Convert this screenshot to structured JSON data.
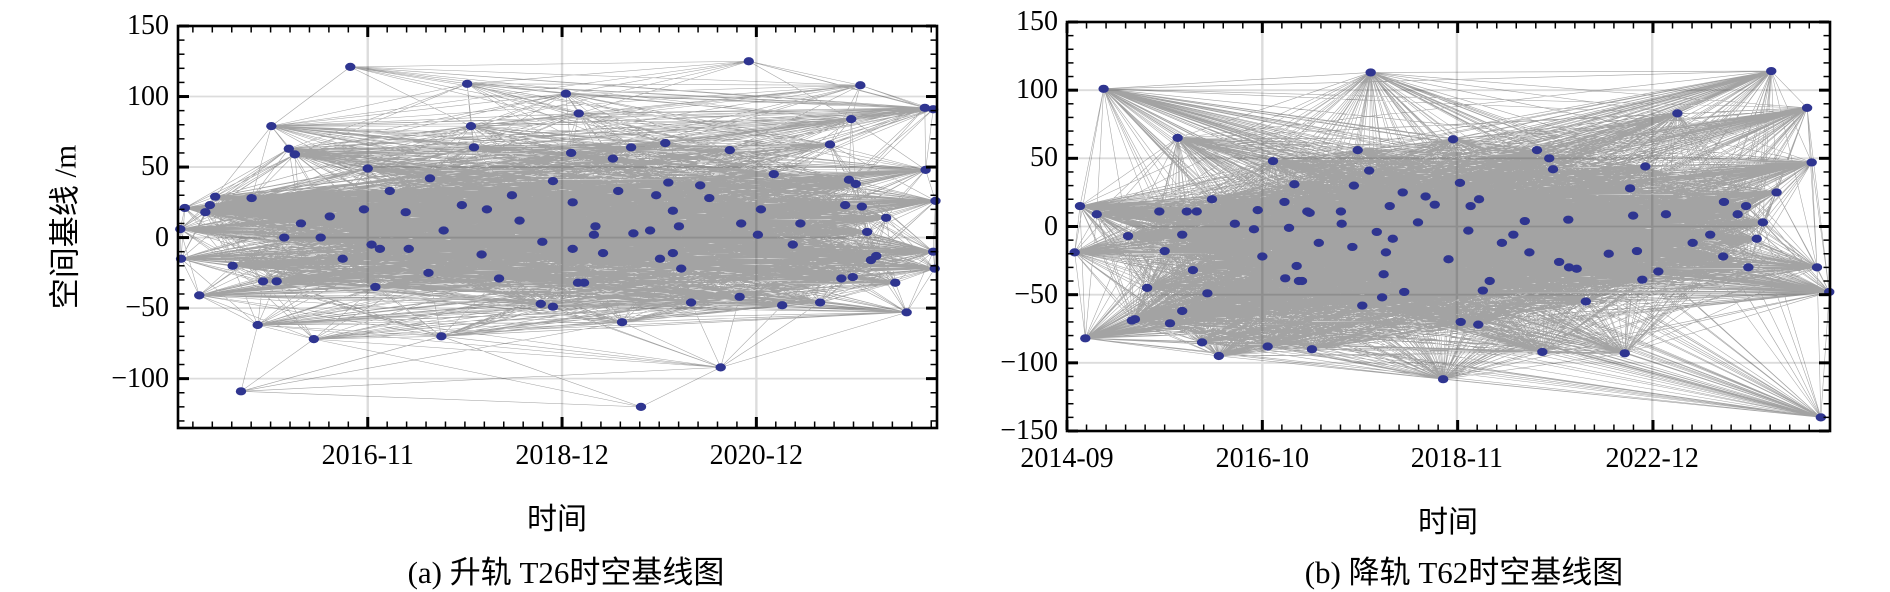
{
  "page": {
    "background": "#ffffff"
  },
  "chart_data": [
    {
      "type": "scatter",
      "subtype": "baseline-network",
      "title": "(a) 升轨 T26时空基线图",
      "xlabel": "时间",
      "ylabel": "空间基线 /m",
      "x_ticks": [
        {
          "label": "2016-11",
          "f": 0.25
        },
        {
          "label": "2018-12",
          "f": 0.506
        },
        {
          "label": "2020-12",
          "f": 0.762
        }
      ],
      "y_ticks": [
        150,
        100,
        50,
        0,
        -50,
        -100
      ],
      "ylim": [
        -135,
        150
      ],
      "y_minor_step": 10,
      "grid": true,
      "legend": "none",
      "point_color": "#2f3590",
      "line_color": "rgba(25,25,25,0.40)",
      "grid_color": "#dcdcdc",
      "edge_rule": {
        "type": "connect_pairs_within_baseline_diff",
        "max_diff_m": 55
      },
      "points": [
        [
          0.227,
          121
        ],
        [
          0.752,
          125
        ],
        [
          0.899,
          108
        ],
        [
          0.511,
          102
        ],
        [
          0.381,
          109
        ],
        [
          0.984,
          92
        ],
        [
          0.995,
          91
        ],
        [
          0.528,
          88
        ],
        [
          0.887,
          84
        ],
        [
          0.123,
          79
        ],
        [
          0.386,
          79
        ],
        [
          0.146,
          63
        ],
        [
          0.39,
          64
        ],
        [
          0.154,
          59
        ],
        [
          0.859,
          66
        ],
        [
          0.642,
          67
        ],
        [
          0.597,
          64
        ],
        [
          0.727,
          62
        ],
        [
          0.518,
          60
        ],
        [
          0.573,
          56
        ],
        [
          0.25,
          49
        ],
        [
          0.332,
          42
        ],
        [
          0.494,
          40
        ],
        [
          0.785,
          45
        ],
        [
          0.884,
          41
        ],
        [
          0.893,
          38
        ],
        [
          0.646,
          39
        ],
        [
          0.688,
          37
        ],
        [
          0.985,
          48
        ],
        [
          0.279,
          33
        ],
        [
          0.049,
          29
        ],
        [
          0.097,
          28
        ],
        [
          0.63,
          30
        ],
        [
          0.042,
          23
        ],
        [
          0.374,
          23
        ],
        [
          0.036,
          18
        ],
        [
          0.245,
          20
        ],
        [
          0.407,
          20
        ],
        [
          0.879,
          23
        ],
        [
          0.901,
          22
        ],
        [
          0.998,
          26
        ],
        [
          0.768,
          20
        ],
        [
          0.652,
          19
        ],
        [
          0.933,
          14
        ],
        [
          0.162,
          10
        ],
        [
          0.742,
          10
        ],
        [
          0.009,
          21
        ],
        [
          0.003,
          6
        ],
        [
          0.004,
          -15
        ],
        [
          0.072,
          -20
        ],
        [
          0.028,
          -41
        ],
        [
          0.112,
          -31
        ],
        [
          0.13,
          -31
        ],
        [
          0.26,
          -35
        ],
        [
          0.105,
          -62
        ],
        [
          0.179,
          -72
        ],
        [
          0.347,
          -70
        ],
        [
          0.083,
          -109
        ],
        [
          0.14,
          0
        ],
        [
          0.188,
          0
        ],
        [
          0.266,
          -8
        ],
        [
          0.304,
          -8
        ],
        [
          0.217,
          -15
        ],
        [
          0.423,
          -29
        ],
        [
          0.478,
          -47
        ],
        [
          0.494,
          -49
        ],
        [
          0.908,
          4
        ],
        [
          0.764,
          2
        ],
        [
          0.622,
          5
        ],
        [
          0.548,
          2
        ],
        [
          0.52,
          -8
        ],
        [
          0.56,
          -11
        ],
        [
          0.635,
          -15
        ],
        [
          0.652,
          -11
        ],
        [
          0.663,
          -22
        ],
        [
          0.527,
          -32
        ],
        [
          0.535,
          -32
        ],
        [
          0.74,
          -42
        ],
        [
          0.676,
          -46
        ],
        [
          0.796,
          -48
        ],
        [
          0.846,
          -46
        ],
        [
          0.874,
          -29
        ],
        [
          0.889,
          -28
        ],
        [
          0.913,
          -16
        ],
        [
          0.92,
          -13
        ],
        [
          0.945,
          -32
        ],
        [
          0.96,
          -53
        ],
        [
          0.995,
          -10
        ],
        [
          0.997,
          -22
        ],
        [
          0.585,
          -60
        ],
        [
          0.715,
          -92
        ],
        [
          0.61,
          -120
        ],
        [
          0.45,
          12
        ],
        [
          0.35,
          5
        ],
        [
          0.3,
          18
        ],
        [
          0.55,
          8
        ],
        [
          0.6,
          3
        ],
        [
          0.48,
          -3
        ],
        [
          0.4,
          -12
        ],
        [
          0.33,
          -25
        ],
        [
          0.44,
          30
        ],
        [
          0.52,
          25
        ],
        [
          0.58,
          33
        ],
        [
          0.7,
          28
        ],
        [
          0.66,
          8
        ],
        [
          0.255,
          -5
        ],
        [
          0.2,
          15
        ],
        [
          0.82,
          10
        ],
        [
          0.81,
          -5
        ]
      ]
    },
    {
      "type": "scatter",
      "subtype": "baseline-network",
      "title": "(b) 降轨 T62时空基线图",
      "xlabel": "时间",
      "ylabel": "",
      "x_ticks": [
        {
          "label": "2014-09",
          "f": 0.0
        },
        {
          "label": "2016-10",
          "f": 0.256
        },
        {
          "label": "2018-11",
          "f": 0.511
        },
        {
          "label": "2022-12",
          "f": 0.767
        }
      ],
      "y_ticks": [
        150,
        100,
        50,
        0,
        -50,
        -100,
        -150
      ],
      "ylim": [
        -150,
        150
      ],
      "y_minor_step": 10,
      "grid": true,
      "legend": "none",
      "point_color": "#2f3590",
      "line_color": "rgba(25,25,25,0.40)",
      "grid_color": "#dcdcdc",
      "edge_rule": {
        "type": "connect_pairs_within_baseline_diff",
        "max_diff_m": 145
      },
      "points": [
        [
          0.024,
          -82
        ],
        [
          0.089,
          -68
        ],
        [
          0.135,
          -71
        ],
        [
          0.177,
          -85
        ],
        [
          0.199,
          -95
        ],
        [
          0.263,
          -88
        ],
        [
          0.321,
          -90
        ],
        [
          0.048,
          101
        ],
        [
          0.145,
          65
        ],
        [
          0.27,
          48
        ],
        [
          0.298,
          31
        ],
        [
          0.017,
          15
        ],
        [
          0.039,
          9
        ],
        [
          0.121,
          11
        ],
        [
          0.157,
          11
        ],
        [
          0.17,
          11
        ],
        [
          0.315,
          11
        ],
        [
          0.245,
          -2
        ],
        [
          0.291,
          -1
        ],
        [
          0.08,
          -7
        ],
        [
          0.151,
          -6
        ],
        [
          0.01,
          -19
        ],
        [
          0.128,
          -18
        ],
        [
          0.256,
          -22
        ],
        [
          0.286,
          -38
        ],
        [
          0.304,
          -40
        ],
        [
          0.184,
          -49
        ],
        [
          0.151,
          -62
        ],
        [
          0.085,
          -69
        ],
        [
          0.398,
          113
        ],
        [
          0.506,
          64
        ],
        [
          0.381,
          56
        ],
        [
          0.616,
          56
        ],
        [
          0.632,
          50
        ],
        [
          0.637,
          42
        ],
        [
          0.396,
          41
        ],
        [
          0.376,
          30
        ],
        [
          0.515,
          32
        ],
        [
          0.482,
          16
        ],
        [
          0.529,
          15
        ],
        [
          0.423,
          15
        ],
        [
          0.318,
          10
        ],
        [
          0.359,
          11
        ],
        [
          0.657,
          5
        ],
        [
          0.406,
          -4
        ],
        [
          0.526,
          -3
        ],
        [
          0.374,
          -15
        ],
        [
          0.418,
          -19
        ],
        [
          0.427,
          -9
        ],
        [
          0.606,
          -19
        ],
        [
          0.645,
          -26
        ],
        [
          0.658,
          -30
        ],
        [
          0.668,
          -31
        ],
        [
          0.301,
          -29
        ],
        [
          0.308,
          -40
        ],
        [
          0.554,
          -40
        ],
        [
          0.545,
          -47
        ],
        [
          0.415,
          -35
        ],
        [
          0.413,
          -52
        ],
        [
          0.387,
          -58
        ],
        [
          0.442,
          -48
        ],
        [
          0.516,
          -70
        ],
        [
          0.539,
          -72
        ],
        [
          0.623,
          -92
        ],
        [
          0.493,
          -112
        ],
        [
          0.843,
          -6
        ],
        [
          0.904,
          -9
        ],
        [
          0.747,
          -18
        ],
        [
          0.893,
          -30
        ],
        [
          0.983,
          -30
        ],
        [
          0.775,
          -33
        ],
        [
          0.754,
          -39
        ],
        [
          0.999,
          -48
        ],
        [
          0.731,
          -93
        ],
        [
          0.988,
          -140
        ],
        [
          0.923,
          114
        ],
        [
          0.97,
          87
        ],
        [
          0.8,
          83
        ],
        [
          0.976,
          47
        ],
        [
          0.758,
          44
        ],
        [
          0.738,
          28
        ],
        [
          0.861,
          18
        ],
        [
          0.879,
          9
        ],
        [
          0.912,
          3
        ],
        [
          0.742,
          8
        ],
        [
          0.785,
          9
        ],
        [
          0.36,
          2
        ],
        [
          0.46,
          3
        ],
        [
          0.5,
          -24
        ],
        [
          0.57,
          -12
        ],
        [
          0.585,
          -6
        ],
        [
          0.6,
          4
        ],
        [
          0.47,
          22
        ],
        [
          0.44,
          25
        ],
        [
          0.54,
          20
        ],
        [
          0.285,
          18
        ],
        [
          0.33,
          -12
        ],
        [
          0.25,
          12
        ],
        [
          0.22,
          2
        ],
        [
          0.19,
          20
        ],
        [
          0.165,
          -32
        ],
        [
          0.105,
          -45
        ],
        [
          0.68,
          -55
        ],
        [
          0.71,
          -20
        ],
        [
          0.82,
          -12
        ],
        [
          0.86,
          -22
        ],
        [
          0.89,
          15
        ],
        [
          0.93,
          25
        ]
      ]
    }
  ]
}
